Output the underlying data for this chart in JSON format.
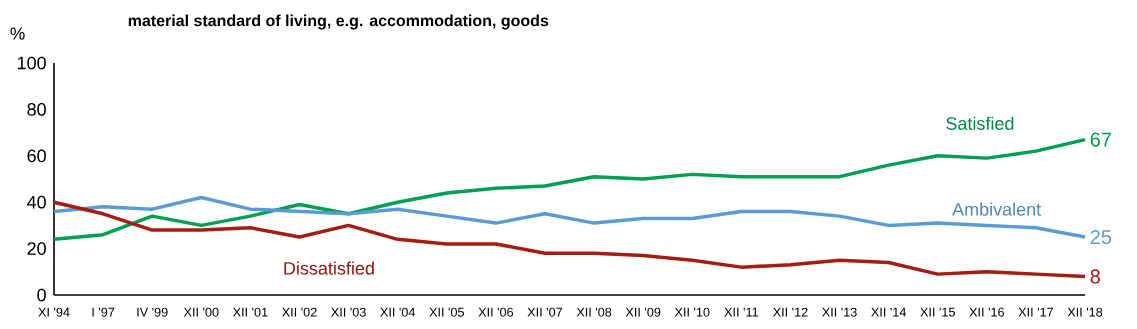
{
  "chart_data": {
    "type": "line",
    "title": "material standard of living, e.g. accommodation, goods",
    "ylabel": "%",
    "categories": [
      "XI '94",
      "I '97",
      "IV '99",
      "XII '00",
      "XII '01",
      "XII '02",
      "XII '03",
      "XII '04",
      "XII '05",
      "XII '06",
      "XII '07",
      "XII '08",
      "XII '09",
      "XII '10",
      "XII '11",
      "XII '12",
      "XII '13",
      "XII '14",
      "XII '15",
      "XII '16",
      "XII '17",
      "XII '18"
    ],
    "series": [
      {
        "name": "Satisfied",
        "color": "#00a050",
        "values": [
          24,
          26,
          34,
          30,
          34,
          39,
          35,
          40,
          44,
          46,
          47,
          51,
          50,
          52,
          51,
          51,
          51,
          56,
          60,
          59,
          62,
          67
        ],
        "value_labels": [
          null,
          null,
          null,
          null,
          null,
          null,
          null,
          null,
          null,
          null,
          null,
          null,
          null,
          null,
          null,
          null,
          null,
          null,
          null,
          null,
          null,
          "67"
        ]
      },
      {
        "name": "Ambivalent",
        "color": "#5b9bd5",
        "values": [
          36,
          38,
          37,
          42,
          37,
          36,
          35,
          37,
          34,
          31,
          35,
          31,
          33,
          33,
          36,
          36,
          34,
          30,
          31,
          30,
          29,
          25
        ],
        "value_labels": [
          null,
          null,
          null,
          null,
          null,
          null,
          null,
          null,
          null,
          null,
          null,
          null,
          null,
          null,
          null,
          null,
          null,
          null,
          null,
          null,
          null,
          "25"
        ]
      },
      {
        "name": "Dissatisfied",
        "color": "#a51c10",
        "values": [
          40,
          35,
          28,
          28,
          29,
          25,
          30,
          24,
          22,
          22,
          18,
          18,
          17,
          15,
          12,
          13,
          15,
          14,
          9,
          10,
          9,
          8
        ],
        "value_labels": [
          null,
          null,
          null,
          null,
          null,
          null,
          null,
          null,
          null,
          null,
          null,
          null,
          null,
          null,
          null,
          null,
          null,
          null,
          null,
          null,
          null,
          "8"
        ]
      }
    ],
    "ylim": [
      0,
      100
    ],
    "yticks": [
      0,
      20,
      40,
      60,
      80,
      100
    ],
    "line_style": "solid"
  }
}
